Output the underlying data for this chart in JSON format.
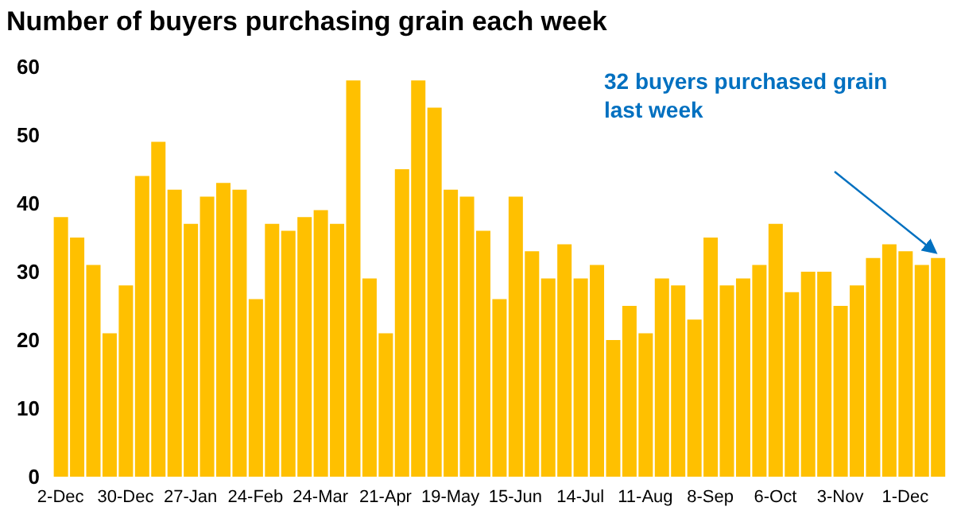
{
  "chart_data": {
    "type": "bar",
    "title": "Number of buyers purchasing grain each week",
    "categories": [
      "2-Dec",
      null,
      null,
      null,
      "30-Dec",
      null,
      null,
      null,
      "27-Jan",
      null,
      null,
      null,
      "24-Feb",
      null,
      null,
      null,
      "24-Mar",
      null,
      null,
      null,
      "21-Apr",
      null,
      null,
      null,
      "19-May",
      null,
      null,
      null,
      "15-Jun",
      null,
      null,
      null,
      "14-Jul",
      null,
      null,
      null,
      "11-Aug",
      null,
      null,
      null,
      "8-Sep",
      null,
      null,
      null,
      "6-Oct",
      null,
      null,
      null,
      "3-Nov",
      null,
      null,
      null,
      "1-Dec",
      null,
      null
    ],
    "values": [
      38,
      35,
      31,
      21,
      28,
      44,
      49,
      42,
      37,
      41,
      43,
      42,
      26,
      37,
      36,
      38,
      39,
      37,
      58,
      29,
      21,
      45,
      58,
      54,
      42,
      41,
      36,
      26,
      41,
      33,
      29,
      34,
      29,
      31,
      20,
      25,
      21,
      29,
      28,
      23,
      35,
      28,
      29,
      31,
      37,
      27,
      30,
      30,
      25,
      28,
      32,
      34,
      33,
      31,
      32
    ],
    "color": "#ffc000",
    "ylim": [
      0,
      60
    ],
    "yticks": [
      0,
      10,
      20,
      30,
      40,
      50,
      60
    ],
    "annotations": [
      "32 buyers purchased grain last week"
    ]
  }
}
